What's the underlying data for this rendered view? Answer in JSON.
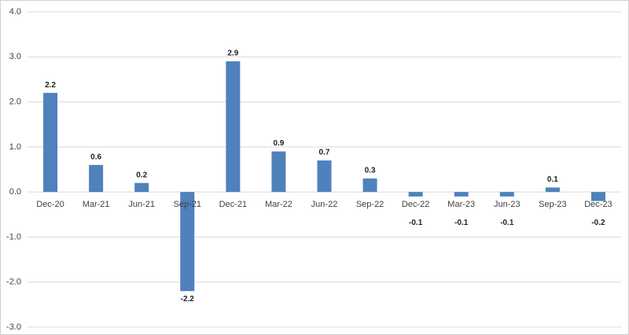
{
  "chart_data": {
    "type": "bar",
    "categories": [
      "Dec-20",
      "Mar-21",
      "Jun-21",
      "Sep-21",
      "Dec-21",
      "Mar-22",
      "Jun-22",
      "Sep-22",
      "Dec-22",
      "Mar-23",
      "Jun-23",
      "Sep-23",
      "Dec-23"
    ],
    "values": [
      2.2,
      0.6,
      0.2,
      -2.2,
      2.9,
      0.9,
      0.7,
      0.3,
      -0.1,
      -0.1,
      -0.1,
      0.1,
      -0.2
    ],
    "color": "#4f81bd",
    "ylim": [
      -3,
      4
    ],
    "yticks": [
      {
        "value": -3,
        "label": "-3.0"
      },
      {
        "value": -2,
        "label": "-2.0"
      },
      {
        "value": -1,
        "label": "-1.0"
      },
      {
        "value": 0,
        "label": "0.0"
      },
      {
        "value": 1,
        "label": "1.0"
      },
      {
        "value": 2,
        "label": "2.0"
      },
      {
        "value": 3,
        "label": "3.0"
      },
      {
        "value": 4,
        "label": "4.0"
      }
    ],
    "grid": true
  }
}
